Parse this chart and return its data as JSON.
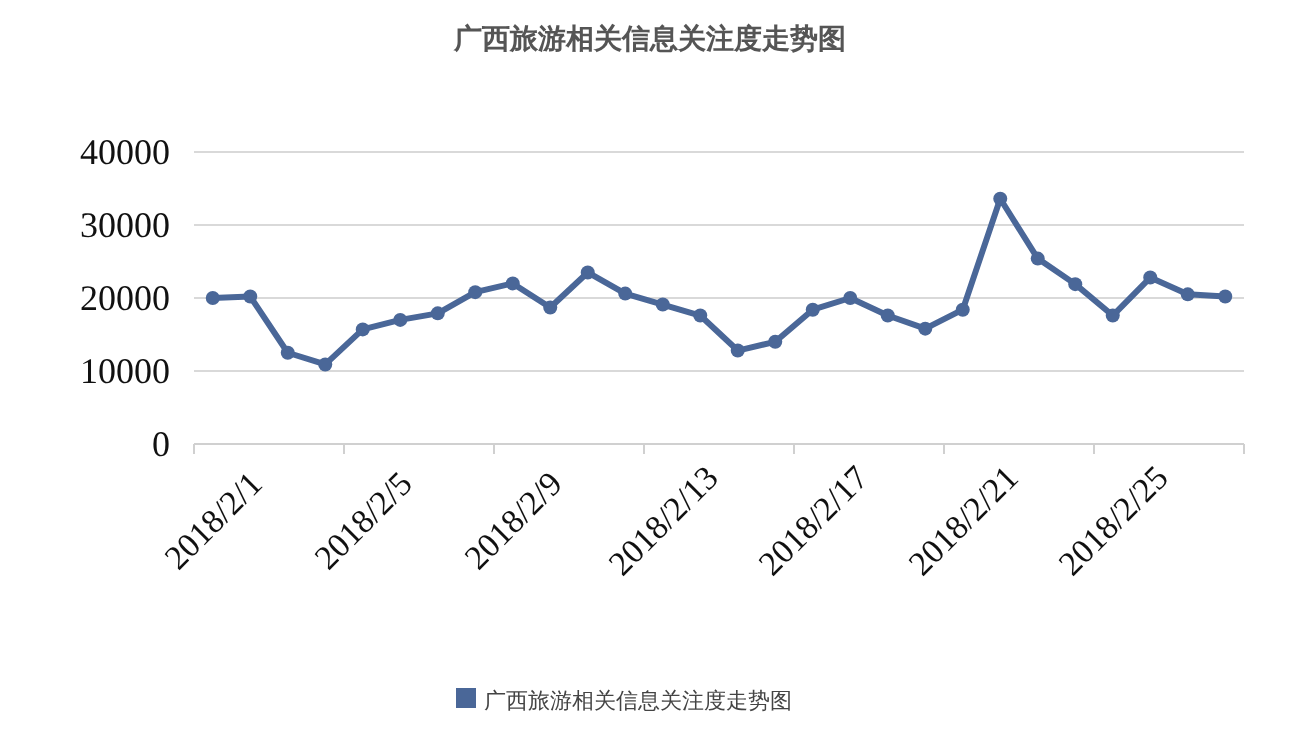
{
  "chart_data": {
    "type": "line",
    "title": "广西旅游相关信息关注度走势图",
    "categories": [
      "2018/2/1",
      null,
      null,
      null,
      "2018/2/5",
      null,
      null,
      null,
      "2018/2/9",
      null,
      null,
      null,
      "2018/2/13",
      null,
      null,
      null,
      "2018/2/17",
      null,
      null,
      null,
      "2018/2/21",
      null,
      null,
      null,
      "2018/2/25",
      null,
      null,
      null
    ],
    "series": [
      {
        "name": "广西旅游相关信息关注度走势图",
        "color": "#4a6798",
        "values": [
          20000,
          20200,
          12500,
          10900,
          15700,
          17000,
          17900,
          20800,
          22000,
          18700,
          23500,
          20600,
          19100,
          17600,
          12800,
          14000,
          18400,
          20000,
          17600,
          15800,
          18400,
          33600,
          25400,
          21900,
          17600,
          22800,
          20500,
          20200
        ]
      }
    ],
    "ylim": [
      0,
      40000
    ],
    "yticks": [
      0,
      10000,
      20000,
      30000,
      40000
    ],
    "grid": "y",
    "legend": "bottom",
    "marker": "circle",
    "line_style": "solid"
  }
}
